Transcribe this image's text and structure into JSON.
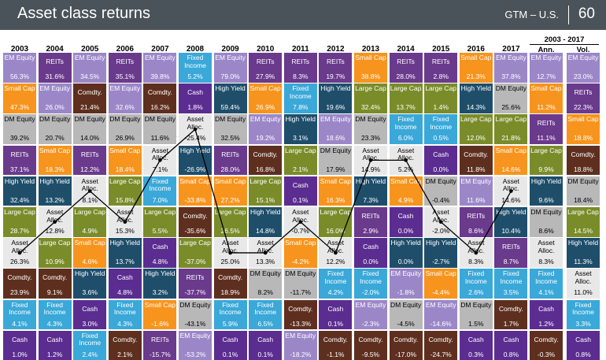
{
  "header": {
    "title": "Asset class returns",
    "tag": "GTM – U.S.",
    "page": "60"
  },
  "summary_header": {
    "period": "2003 - 2017",
    "ann": "Ann.",
    "vol": "Vol."
  },
  "colors": {
    "EM Equity": "#9b87c8",
    "REITs": "#6a3a8c",
    "Small Cap": "#f7941d",
    "DM Equity": "#b8b8b8",
    "Comdty.": "#5e2f1f",
    "High Yield": "#1f4e6b",
    "Large Cap": "#7a8c2a",
    "Asset Alloc.": "#e8e8e8",
    "Fixed Income": "#3aa8d8",
    "Cash": "#5b2d90"
  },
  "chart_data": {
    "type": "table",
    "title": "Asset class returns",
    "years": [
      "2003",
      "2004",
      "2005",
      "2006",
      "2007",
      "2008",
      "2009",
      "2010",
      "2011",
      "2012",
      "2013",
      "2014",
      "2015",
      "2016",
      "2017"
    ],
    "columns": [
      [
        [
          "EM Equity",
          "56.3%"
        ],
        [
          "Small Cap",
          "47.3%"
        ],
        [
          "DM Equity",
          "39.2%"
        ],
        [
          "REITs",
          "37.1%"
        ],
        [
          "High Yield",
          "32.4%"
        ],
        [
          "Large Cap",
          "28.7%"
        ],
        [
          "Asset Alloc.",
          "26.3%"
        ],
        [
          "Comdty.",
          "23.9%"
        ],
        [
          "Fixed Income",
          "4.1%"
        ],
        [
          "Cash",
          "1.0%"
        ]
      ],
      [
        [
          "REITs",
          "31.6%"
        ],
        [
          "EM Equity",
          "26.0%"
        ],
        [
          "DM Equity",
          "20.7%"
        ],
        [
          "Small Cap",
          "18.3%"
        ],
        [
          "High Yield",
          "13.2%"
        ],
        [
          "Asset Alloc.",
          "12.8%"
        ],
        [
          "Large Cap",
          "10.9%"
        ],
        [
          "Comdty.",
          "9.1%"
        ],
        [
          "Fixed Income",
          "4.3%"
        ],
        [
          "Cash",
          "1.2%"
        ]
      ],
      [
        [
          "EM Equity",
          "34.5%"
        ],
        [
          "Comdty.",
          "21.4%"
        ],
        [
          "DM Equity",
          "14.0%"
        ],
        [
          "REITs",
          "12.2%"
        ],
        [
          "Asset Alloc.",
          "8.1%"
        ],
        [
          "Large Cap",
          "4.9%"
        ],
        [
          "Small Cap",
          "4.6%"
        ],
        [
          "High Yield",
          "3.6%"
        ],
        [
          "Cash",
          "3.0%"
        ],
        [
          "Fixed Income",
          "2.4%"
        ]
      ],
      [
        [
          "REITs",
          "35.1%"
        ],
        [
          "EM Equity",
          "32.6%"
        ],
        [
          "DM Equity",
          "26.9%"
        ],
        [
          "Small Cap",
          "18.4%"
        ],
        [
          "Large Cap",
          "15.8%"
        ],
        [
          "Asset Alloc.",
          "15.3%"
        ],
        [
          "High Yield",
          "13.7%"
        ],
        [
          "Cash",
          "4.8%"
        ],
        [
          "Fixed Income",
          "4.3%"
        ],
        [
          "Comdty.",
          "2.1%"
        ]
      ],
      [
        [
          "EM Equity",
          "39.8%"
        ],
        [
          "Comdty.",
          "16.2%"
        ],
        [
          "DM Equity",
          "11.6%"
        ],
        [
          "Asset Alloc.",
          "7.1%"
        ],
        [
          "Fixed Income",
          "7.0%"
        ],
        [
          "Large Cap",
          "5.5%"
        ],
        [
          "Cash",
          "4.8%"
        ],
        [
          "High Yield",
          "3.2%"
        ],
        [
          "Small Cap",
          "-1.6%"
        ],
        [
          "REITs",
          "-15.7%"
        ]
      ],
      [
        [
          "Fixed Income",
          "5.2%"
        ],
        [
          "Cash",
          "1.8%"
        ],
        [
          "Asset Alloc.",
          "-25.4%"
        ],
        [
          "High Yield",
          "-26.9%"
        ],
        [
          "Small Cap",
          "-33.8%"
        ],
        [
          "Comdty.",
          "-35.6%"
        ],
        [
          "Large Cap",
          "-37.0%"
        ],
        [
          "REITs",
          "-37.7%"
        ],
        [
          "DM Equity",
          "-43.1%"
        ],
        [
          "EM Equity",
          "-53.2%"
        ]
      ],
      [
        [
          "EM Equity",
          "79.0%"
        ],
        [
          "High Yield",
          "59.4%"
        ],
        [
          "DM Equity",
          "32.5%"
        ],
        [
          "REITs",
          "28.0%"
        ],
        [
          "Small Cap",
          "27.2%"
        ],
        [
          "Large Cap",
          "26.5%"
        ],
        [
          "Asset Alloc.",
          "25.0%"
        ],
        [
          "Comdty.",
          "18.9%"
        ],
        [
          "Fixed Income",
          "5.9%"
        ],
        [
          "Cash",
          "0.1%"
        ]
      ],
      [
        [
          "REITs",
          "27.9%"
        ],
        [
          "Small Cap",
          "26.9%"
        ],
        [
          "EM Equity",
          "19.2%"
        ],
        [
          "Comdty.",
          "16.8%"
        ],
        [
          "Large Cap",
          "15.1%"
        ],
        [
          "High Yield",
          "14.8%"
        ],
        [
          "Asset Alloc.",
          "13.3%"
        ],
        [
          "DM Equity",
          "8.2%"
        ],
        [
          "Fixed Income",
          "6.5%"
        ],
        [
          "Cash",
          "0.1%"
        ]
      ],
      [
        [
          "REITs",
          "8.3%"
        ],
        [
          "Fixed Income",
          "7.8%"
        ],
        [
          "High Yield",
          "3.1%"
        ],
        [
          "Large Cap",
          "2.1%"
        ],
        [
          "Cash",
          "0.1%"
        ],
        [
          "Asset Alloc.",
          "-0.7%"
        ],
        [
          "Small Cap",
          "-4.2%"
        ],
        [
          "DM Equity",
          "-11.7%"
        ],
        [
          "Comdty.",
          "-13.3%"
        ],
        [
          "EM Equity",
          "-18.2%"
        ]
      ],
      [
        [
          "REITs",
          "19.7%"
        ],
        [
          "High Yield",
          "19.6%"
        ],
        [
          "EM Equity",
          "18.6%"
        ],
        [
          "DM Equity",
          "17.9%"
        ],
        [
          "Small Cap",
          "16.3%"
        ],
        [
          "Large Cap",
          "16.0%"
        ],
        [
          "Asset Alloc.",
          "12.2%"
        ],
        [
          "Fixed Income",
          "4.2%"
        ],
        [
          "Cash",
          "0.1%"
        ],
        [
          "Comdty.",
          "-1.1%"
        ]
      ],
      [
        [
          "Small Cap",
          "38.8%"
        ],
        [
          "Large Cap",
          "32.4%"
        ],
        [
          "DM Equity",
          "23.3%"
        ],
        [
          "Asset Alloc.",
          "14.9%"
        ],
        [
          "High Yield",
          "7.3%"
        ],
        [
          "REITs",
          "2.9%"
        ],
        [
          "Cash",
          "0.0%"
        ],
        [
          "Fixed Income",
          "-2.0%"
        ],
        [
          "EM Equity",
          "-2.3%"
        ],
        [
          "Comdty.",
          "-9.5%"
        ]
      ],
      [
        [
          "REITs",
          "28.0%"
        ],
        [
          "Large Cap",
          "13.7%"
        ],
        [
          "Fixed Income",
          "6.0%"
        ],
        [
          "Asset Alloc.",
          "5.2%"
        ],
        [
          "Small Cap",
          "4.9%"
        ],
        [
          "Cash",
          "0.0%"
        ],
        [
          "High Yield",
          "0.0%"
        ],
        [
          "EM Equity",
          "-1.8%"
        ],
        [
          "DM Equity",
          "-4.5%"
        ],
        [
          "Comdty.",
          "-17.0%"
        ]
      ],
      [
        [
          "REITs",
          "2.8%"
        ],
        [
          "Large Cap",
          "1.4%"
        ],
        [
          "Fixed Income",
          "0.5%"
        ],
        [
          "Cash",
          "0.0%"
        ],
        [
          "DM Equity",
          "-0.4%"
        ],
        [
          "Asset Alloc.",
          "-2.0%"
        ],
        [
          "High Yield",
          "-2.7%"
        ],
        [
          "Small Cap",
          "-4.4%"
        ],
        [
          "EM Equity",
          "-14.6%"
        ],
        [
          "Comdty.",
          "-24.7%"
        ]
      ],
      [
        [
          "Small Cap",
          "21.3%"
        ],
        [
          "High Yield",
          "14.3%"
        ],
        [
          "Large Cap",
          "12.0%"
        ],
        [
          "Comdty.",
          "11.8%"
        ],
        [
          "EM Equity",
          "11.6%"
        ],
        [
          "REITs",
          "8.6%"
        ],
        [
          "Asset Alloc.",
          "8.3%"
        ],
        [
          "Fixed Income",
          "2.6%"
        ],
        [
          "DM Equity",
          "1.5%"
        ],
        [
          "Cash",
          "0.3%"
        ]
      ],
      [
        [
          "EM Equity",
          "37.8%"
        ],
        [
          "DM Equity",
          "25.6%"
        ],
        [
          "Large Cap",
          "21.8%"
        ],
        [
          "Small Cap",
          "14.6%"
        ],
        [
          "Asset Alloc.",
          "14.6%"
        ],
        [
          "High Yield",
          "10.4%"
        ],
        [
          "REITs",
          "8.7%"
        ],
        [
          "Fixed Income",
          "3.5%"
        ],
        [
          "Comdty.",
          "1.7%"
        ],
        [
          "Cash",
          "0.8%"
        ]
      ]
    ],
    "ann": [
      [
        "EM Equity",
        "12.7%"
      ],
      [
        "Small Cap",
        "11.2%"
      ],
      [
        "REITs",
        "11.1%"
      ],
      [
        "Large Cap",
        "9.9%"
      ],
      [
        "High Yield",
        "9.6%"
      ],
      [
        "DM Equity",
        "8.6%"
      ],
      [
        "Asset Alloc.",
        "8.3%"
      ],
      [
        "Fixed Income",
        "4.1%"
      ],
      [
        "Cash",
        "1.2%"
      ],
      [
        "Comdty.",
        "-0.3%"
      ]
    ],
    "vol": [
      [
        "EM Equity",
        "23.0%"
      ],
      [
        "REITs",
        "22.3%"
      ],
      [
        "Small Cap",
        "18.8%"
      ],
      [
        "Comdty.",
        "18.8%"
      ],
      [
        "DM Equity",
        "18.4%"
      ],
      [
        "Large Cap",
        "14.5%"
      ],
      [
        "High Yield",
        "11.3%"
      ],
      [
        "Asset Alloc.",
        "11.0%"
      ],
      [
        "Fixed Income",
        "3.3%"
      ],
      [
        "Cash",
        "0.8%"
      ]
    ]
  }
}
